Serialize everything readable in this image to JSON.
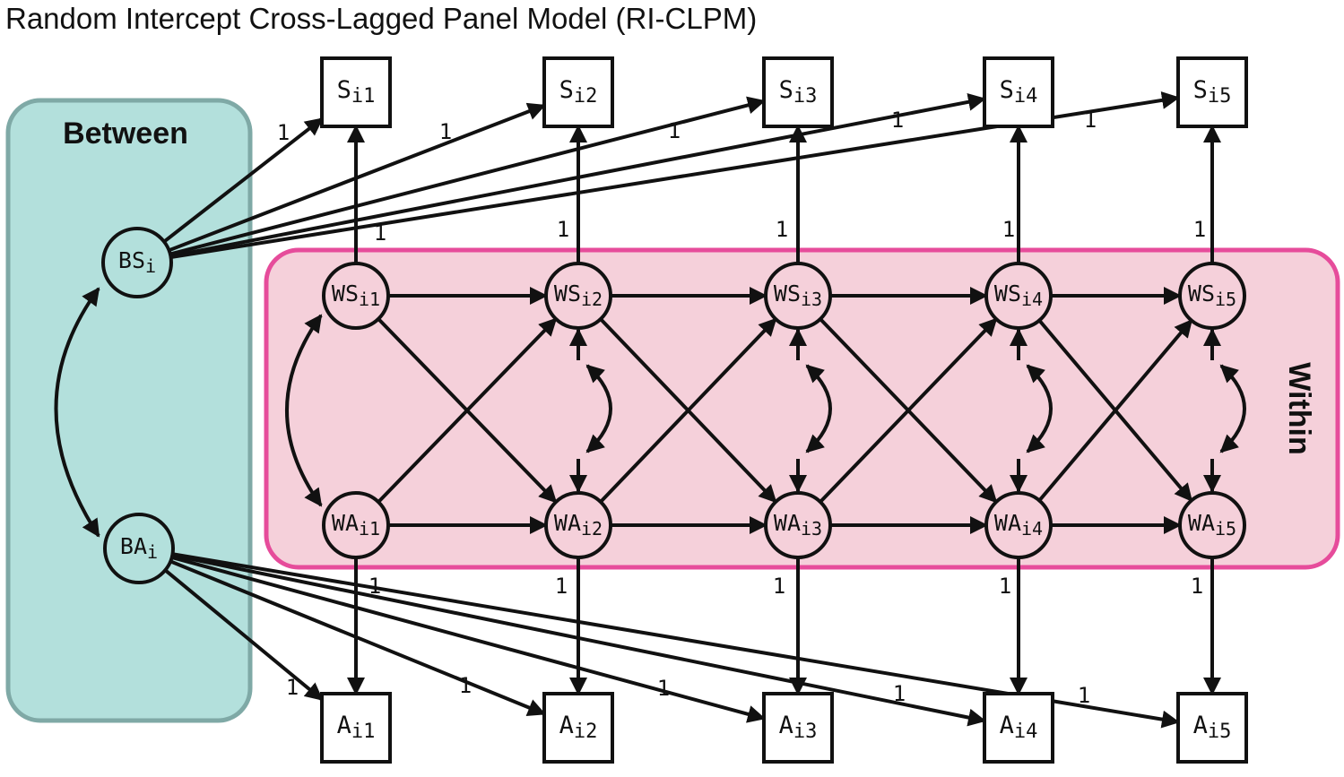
{
  "title": "Random Intercept Cross-Lagged Panel Model (RI-CLPM)",
  "panels": {
    "between_label": "Between",
    "within_label": "Within"
  },
  "colors": {
    "between_fill": "#b3e0dc",
    "between_stroke": "#7fa9a6",
    "within_fill": "#f5d0da",
    "within_stroke": "#e64c9b",
    "node_fill": "#f5d0da",
    "ink": "#111111"
  },
  "between_nodes": {
    "bs": {
      "base": "BS",
      "sub": "i"
    },
    "ba": {
      "base": "BA",
      "sub": "i"
    }
  },
  "within_s": [
    {
      "base": "WS",
      "sub": "i1"
    },
    {
      "base": "WS",
      "sub": "i2"
    },
    {
      "base": "WS",
      "sub": "i3"
    },
    {
      "base": "WS",
      "sub": "i4"
    },
    {
      "base": "WS",
      "sub": "i5"
    }
  ],
  "within_a": [
    {
      "base": "WA",
      "sub": "i1"
    },
    {
      "base": "WA",
      "sub": "i2"
    },
    {
      "base": "WA",
      "sub": "i3"
    },
    {
      "base": "WA",
      "sub": "i4"
    },
    {
      "base": "WA",
      "sub": "i5"
    }
  ],
  "observed_s": [
    {
      "base": "S",
      "sub": "i1"
    },
    {
      "base": "S",
      "sub": "i2"
    },
    {
      "base": "S",
      "sub": "i3"
    },
    {
      "base": "S",
      "sub": "i4"
    },
    {
      "base": "S",
      "sub": "i5"
    }
  ],
  "observed_a": [
    {
      "base": "A",
      "sub": "i1"
    },
    {
      "base": "A",
      "sub": "i2"
    },
    {
      "base": "A",
      "sub": "i3"
    },
    {
      "base": "A",
      "sub": "i4"
    },
    {
      "base": "A",
      "sub": "i5"
    }
  ],
  "loading_label": "1"
}
